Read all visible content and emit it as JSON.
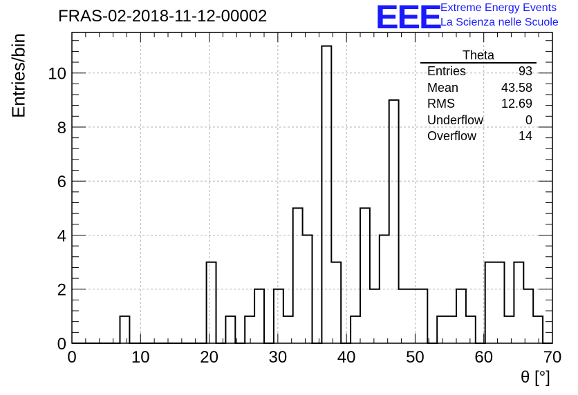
{
  "header": {
    "title": "FRAS-02-2018-11-12-00002",
    "logo_text": "EEE",
    "logo_line1": "Extreme Energy Events",
    "logo_line2": "La Scienza nelle Scuole",
    "logo_color": "#1a1aff"
  },
  "stats": {
    "title": "Theta",
    "rows": [
      {
        "label": "Entries",
        "value": "93"
      },
      {
        "label": "Mean",
        "value": "43.58"
      },
      {
        "label": "RMS",
        "value": "12.69"
      },
      {
        "label": "Underflow",
        "value": "0"
      },
      {
        "label": "Overflow",
        "value": "14"
      }
    ]
  },
  "chart_data": {
    "type": "histogram",
    "xlabel": "θ [°]",
    "ylabel": "Entries/bin",
    "xlim": [
      0,
      70
    ],
    "ylim": [
      0,
      11.5
    ],
    "bin_width": 1.4,
    "x_ticks": [
      0,
      10,
      20,
      30,
      40,
      50,
      60,
      70
    ],
    "y_ticks": [
      0,
      2,
      4,
      6,
      8,
      10
    ],
    "grid": true,
    "values": [
      0,
      0,
      0,
      0,
      0,
      1,
      0,
      0,
      0,
      0,
      0,
      0,
      0,
      0,
      3,
      0,
      1,
      0,
      1,
      2,
      0,
      2,
      1,
      5,
      4,
      0,
      11,
      3,
      0,
      1,
      5,
      2,
      4,
      9,
      2,
      2,
      2,
      0,
      1,
      1,
      2,
      1,
      0,
      3,
      3,
      1,
      3,
      2,
      1,
      0
    ]
  }
}
